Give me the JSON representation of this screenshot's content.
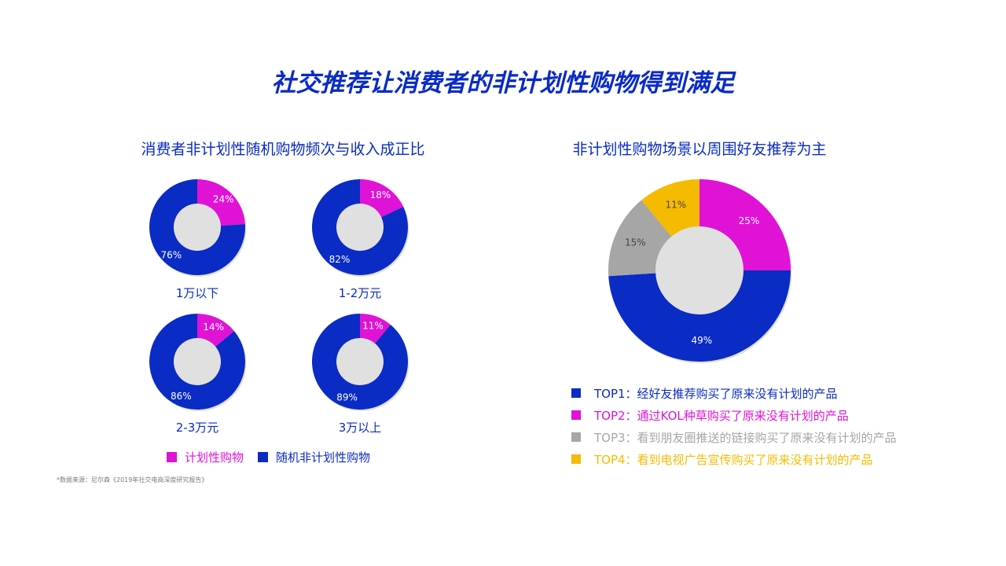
{
  "title": "社交推荐让消费者的非计划性购物得到满足",
  "left_panel": {
    "subtitle": "消费者非计划性随机购物频次与收入成正比",
    "legend": [
      {
        "label": "计划性购物",
        "color": "#e012d6"
      },
      {
        "label": "随机非计划性购物",
        "color": "#0a2bc4"
      }
    ],
    "source": "*数据来源：尼尔森《2019年社交电商深度研究报告》"
  },
  "right_panel": {
    "subtitle": "非计划性购物场景以周围好友推荐为主",
    "legend": [
      {
        "label": "TOP1：经好友推荐购买了原来没有计划的产品",
        "color": "#0a2bc4"
      },
      {
        "label": "TOP2：通过KOL种草购买了原来没有计划的产品",
        "color": "#e012d6"
      },
      {
        "label": "TOP3：看到朋友圈推送的链接购买了原来没有计划的产品",
        "color": "#a6a6a6"
      },
      {
        "label": "TOP4：看到电视广告宣传购买了原来没有计划的产品",
        "color": "#f5bb00"
      }
    ]
  },
  "chart_data": [
    {
      "type": "pie",
      "variant": "donut",
      "caption": "1万以下",
      "slices": [
        {
          "name": "计划性购物",
          "value": 24,
          "label": "24%",
          "color": "#e012d6"
        },
        {
          "name": "随机非计划性购物",
          "value": 76,
          "label": "76%",
          "color": "#0a2bc4"
        }
      ]
    },
    {
      "type": "pie",
      "variant": "donut",
      "caption": "1-2万元",
      "slices": [
        {
          "name": "计划性购物",
          "value": 18,
          "label": "18%",
          "color": "#e012d6"
        },
        {
          "name": "随机非计划性购物",
          "value": 82,
          "label": "82%",
          "color": "#0a2bc4"
        }
      ]
    },
    {
      "type": "pie",
      "variant": "donut",
      "caption": "2-3万元",
      "slices": [
        {
          "name": "计划性购物",
          "value": 14,
          "label": "14%",
          "color": "#e012d6"
        },
        {
          "name": "随机非计划性购物",
          "value": 86,
          "label": "86%",
          "color": "#0a2bc4"
        }
      ]
    },
    {
      "type": "pie",
      "variant": "donut",
      "caption": "3万以上",
      "slices": [
        {
          "name": "计划性购物",
          "value": 11,
          "label": "11%",
          "color": "#e012d6"
        },
        {
          "name": "随机非计划性购物",
          "value": 89,
          "label": "89%",
          "color": "#0a2bc4"
        }
      ]
    },
    {
      "type": "pie",
      "variant": "donut",
      "caption": "",
      "slices": [
        {
          "name": "TOP2",
          "value": 25,
          "label": "25%",
          "color": "#e012d6"
        },
        {
          "name": "TOP1",
          "value": 49,
          "label": "49%",
          "color": "#0a2bc4"
        },
        {
          "name": "TOP3",
          "value": 15,
          "label": "15%",
          "color": "#a6a6a6"
        },
        {
          "name": "TOP4",
          "value": 11,
          "label": "11%",
          "color": "#f5bb00"
        }
      ]
    }
  ]
}
